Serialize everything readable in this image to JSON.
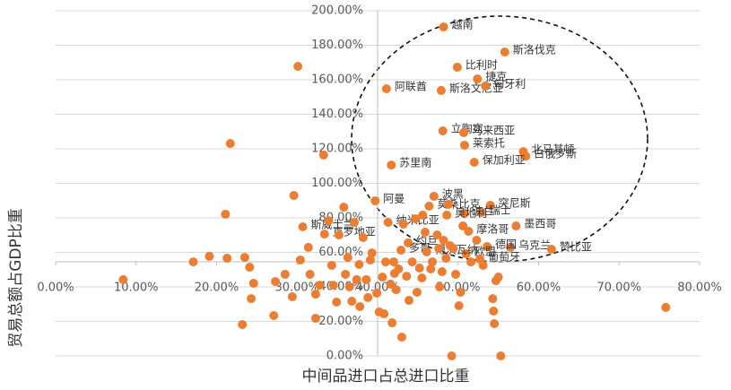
{
  "chart_data": {
    "type": "scatter",
    "x_label": "中间品进口占总进口比重",
    "y_label": "贸易总额占GDP比重",
    "color": "#ed7d31",
    "grid": true,
    "xlim": [
      0,
      80
    ],
    "ylim": [
      0,
      200
    ],
    "xticks": [
      {
        "value": 0,
        "label": "0.00%"
      },
      {
        "value": 10,
        "label": "10.00%"
      },
      {
        "value": 20,
        "label": "20.00%"
      },
      {
        "value": 30,
        "label": "30.00%"
      },
      {
        "value": 40,
        "label": "40.00%"
      },
      {
        "value": 50,
        "label": "50.00%"
      },
      {
        "value": 60,
        "label": "60.00%"
      },
      {
        "value": 70,
        "label": "70.00%"
      },
      {
        "value": 80,
        "label": "80.00%"
      }
    ],
    "yticks": [
      {
        "value": 0,
        "label": "0.00%"
      },
      {
        "value": 20,
        "label": "20.00%"
      },
      {
        "value": 40,
        "label": "40.00%"
      },
      {
        "value": 60,
        "label": "60.00%"
      },
      {
        "value": 80,
        "label": "80.00%"
      },
      {
        "value": 100,
        "label": "100.00%"
      },
      {
        "value": 120,
        "label": "120.00%"
      },
      {
        "value": 140,
        "label": "140.00%"
      },
      {
        "value": 160,
        "label": "160.00%"
      },
      {
        "value": 180,
        "label": "180.00%"
      },
      {
        "value": 200,
        "label": "200.00%"
      }
    ],
    "x": [
      48.2,
      55.8,
      49.9,
      52.4,
      41.1,
      47.9,
      53.4,
      48.1,
      50.7,
      50.8,
      58.1,
      58.4,
      41.7,
      47.0,
      52.0,
      54.0,
      50.8,
      52.9,
      57.2,
      56.5,
      53.6,
      61.6,
      39.7,
      41.3,
      48.6,
      30.7,
      43.8,
      46.4,
      33.4,
      51.0,
      51.3,
      42.9,
      46.1,
      52.7,
      8.4,
      17.1,
      19.1,
      21.1,
      21.7,
      21.3,
      23.5,
      24.1,
      24.6,
      24.3,
      23.2,
      27.1,
      27.3,
      28.5,
      29.6,
      30.1,
      29.4,
      30.4,
      31.4,
      31.6,
      32.3,
      32.3,
      32.8,
      33.3,
      33.9,
      34.3,
      34.5,
      34.9,
      35.2,
      35.8,
      36.0,
      36.3,
      36.5,
      36.8,
      37.1,
      37.4,
      37.7,
      37.8,
      38.2,
      38.6,
      38.8,
      39.1,
      39.3,
      39.9,
      40.2,
      40.6,
      40.8,
      41.0,
      41.6,
      41.8,
      42.0,
      42.1,
      42.3,
      42.6,
      43.0,
      43.2,
      43.6,
      43.9,
      44.3,
      44.7,
      44.9,
      45.2,
      45.5,
      45.6,
      45.9,
      46.6,
      46.8,
      47.4,
      47.6,
      47.7,
      48.0,
      48.2,
      48.5,
      48.8,
      49.0,
      49.2,
      49.4,
      49.7,
      50.1,
      50.3,
      50.6,
      51.6,
      52.3,
      53.1,
      54.3,
      54.4,
      54.5,
      54.7,
      55.0,
      55.3,
      75.8
    ],
    "y": [
      190.6,
      176.1,
      167.3,
      160.5,
      154.8,
      153.8,
      156.4,
      130.4,
      129.4,
      122.1,
      118.4,
      115.8,
      110.6,
      92.5,
      112.2,
      87.3,
      82.6,
      83.1,
      75.3,
      62.9,
      63.4,
      61.8,
      89.9,
      77.4,
      81.6,
      74.8,
      65.5,
      86.8,
      70.6,
      59.2,
      72.2,
      61.3,
      60.3,
      56.1,
      44.2,
      54.5,
      57.7,
      82.1,
      123.1,
      56.6,
      57.1,
      51.4,
      42.1,
      33.2,
      18.2,
      23.4,
      43.1,
      47.3,
      93.0,
      167.8,
      34.3,
      55.6,
      62.9,
      47.3,
      35.8,
      21.8,
      41.0,
      116.4,
      78.4,
      52.5,
      41.0,
      31.2,
      70.1,
      86.2,
      47.3,
      57.1,
      40.0,
      31.7,
      77.4,
      44.2,
      53.0,
      28.6,
      68.6,
      44.2,
      33.8,
      55.6,
      59.7,
      36.4,
      25.5,
      45.7,
      24.4,
      54.5,
      41.6,
      19.2,
      54.5,
      47.8,
      38.4,
      50.4,
      10.9,
      76.4,
      46.2,
      32.2,
      54.5,
      79.5,
      36.9,
      50.9,
      45.2,
      81.6,
      71.7,
      50.4,
      54.5,
      70.1,
      62.3,
      40.0,
      48.8,
      67.0,
      56.6,
      87.8,
      63.9,
      0.0,
      62.3,
      47.3,
      29.1,
      36.9,
      75.3,
      54.5,
      67.0,
      52.5,
      33.2,
      26.0,
      18.7,
      43.6,
      45.7,
      0.0,
      28.1
    ],
    "labels": [
      "越南",
      "斯洛伐克",
      "比利时",
      "捷克",
      "阿联酋",
      "斯洛文尼亚",
      "匈牙利",
      "立陶宛",
      "马来西亚",
      "莱索托",
      "北马其顿",
      "白俄罗斯",
      "苏里南",
      "波黑",
      "保加利亚",
      "突尼斯",
      "波兰",
      "瑞士",
      "墨西哥",
      "乌克兰",
      "德国",
      "赞比亚",
      "阿曼",
      "纳米比亚",
      "奥地利",
      "斯威士兰",
      "约旦",
      "莫桑比克",
      "克罗地亚",
      "欧盟",
      "摩洛哥",
      "多哥",
      "博茨瓦纳",
      "葡萄牙",
      null,
      null,
      null,
      null,
      null,
      null,
      null,
      null,
      null,
      null,
      null,
      null,
      null,
      null,
      null,
      null,
      null,
      null,
      null,
      null,
      null,
      null,
      null,
      null,
      null,
      null,
      null,
      null,
      null,
      null,
      null,
      null,
      null,
      null,
      null,
      null,
      null,
      null,
      null,
      null,
      null,
      null,
      null,
      null,
      null,
      null,
      null,
      null,
      null,
      null,
      null,
      null,
      null,
      null,
      null,
      null,
      null,
      null,
      null,
      null,
      null,
      null,
      null,
      null,
      null,
      null,
      null,
      null,
      null,
      null,
      null,
      null,
      null,
      null,
      null,
      null,
      null,
      null,
      null,
      null,
      null,
      null,
      null,
      null,
      null,
      null,
      null,
      null,
      null,
      null,
      null
    ]
  }
}
